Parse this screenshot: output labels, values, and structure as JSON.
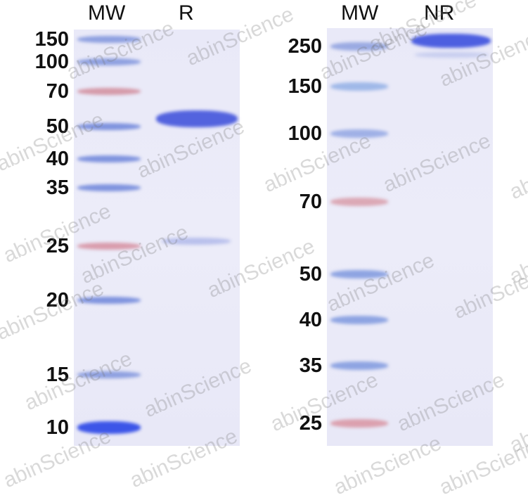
{
  "left_gel": {
    "lanes": [
      "MW",
      "R"
    ],
    "mw_labels": [
      "150",
      "100",
      "70",
      "50",
      "40",
      "35",
      "25",
      "20",
      "15",
      "10"
    ]
  },
  "right_gel": {
    "lanes": [
      "MW",
      "NR"
    ],
    "mw_labels": [
      "250",
      "150",
      "100",
      "70",
      "50",
      "40",
      "35",
      "25"
    ]
  },
  "watermark": "abinScience",
  "colors": {
    "ladder_blue": "#7f93de",
    "ladder_red": "#d79aa8",
    "sample_band": "#5060dd",
    "gel_bg": "#ebebf8"
  }
}
